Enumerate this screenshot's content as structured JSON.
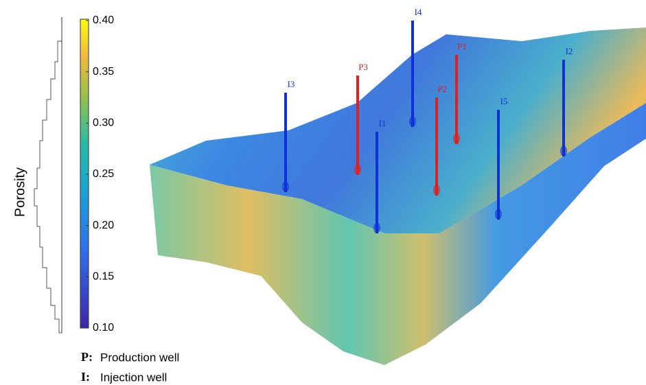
{
  "colorbar": {
    "label": "Porosity",
    "ticks": [
      "0.40",
      "0.35",
      "0.30",
      "0.25",
      "0.20",
      "0.15",
      "0.10"
    ]
  },
  "wells": [
    {
      "label": "I3",
      "kind": "injection"
    },
    {
      "label": "P3",
      "kind": "production"
    },
    {
      "label": "I1",
      "kind": "injection"
    },
    {
      "label": "I4",
      "kind": "injection"
    },
    {
      "label": "P2",
      "kind": "production"
    },
    {
      "label": "P1",
      "kind": "production"
    },
    {
      "label": "I5",
      "kind": "injection"
    },
    {
      "label": "I2",
      "kind": "injection"
    }
  ],
  "legend": [
    {
      "symbol": "P:",
      "text": "Production well"
    },
    {
      "symbol": "I:",
      "text": "Injection well"
    }
  ]
}
